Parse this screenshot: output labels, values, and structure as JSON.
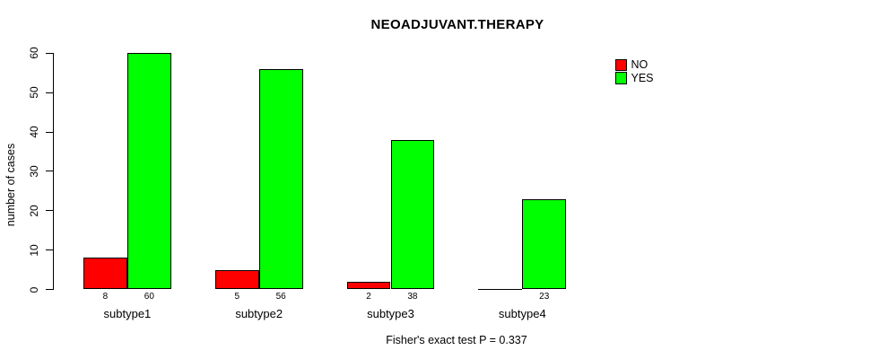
{
  "chart_data": {
    "type": "bar",
    "title": "NEOADJUVANT.THERAPY",
    "xlabel": "",
    "ylabel": "number of cases",
    "caption": "Fisher's exact test P = 0.337",
    "categories": [
      "subtype1",
      "subtype2",
      "subtype3",
      "subtype4"
    ],
    "series": [
      {
        "name": "NO",
        "color": "#ff0000",
        "values": [
          8,
          5,
          2,
          0
        ]
      },
      {
        "name": "YES",
        "color": "#00ff00",
        "values": [
          60,
          56,
          38,
          23
        ]
      }
    ],
    "bar_value_labels": [
      [
        "8",
        "60"
      ],
      [
        "5",
        "56"
      ],
      [
        "2",
        "38"
      ],
      [
        "",
        "23"
      ]
    ],
    "yticks": [
      0,
      10,
      20,
      30,
      40,
      50,
      60
    ],
    "ylim": [
      0,
      60
    ],
    "grid": false,
    "legend": {
      "position": "top-right",
      "entries": [
        {
          "label": "NO",
          "color": "#ff0000"
        },
        {
          "label": "YES",
          "color": "#00ff00"
        }
      ]
    },
    "bar_border_color": "#000000",
    "background_color": "#ffffff"
  }
}
